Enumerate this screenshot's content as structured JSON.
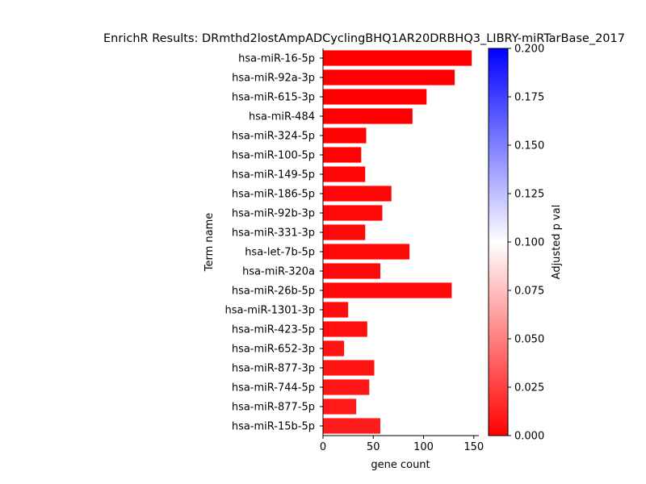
{
  "chart_data": {
    "type": "bar",
    "orientation": "horizontal",
    "title": "EnrichR Results: DRmthd2lostAmpADCyclingBHQ1AR20DRBHQ3_LIBRY-miRTarBase_2017",
    "xlabel": "gene count",
    "ylabel": "Term name",
    "xlim": [
      0,
      155
    ],
    "xticks": [
      "0",
      "50",
      "100",
      "150"
    ],
    "grid": false,
    "categories": [
      "hsa-miR-16-5p",
      "hsa-miR-92a-3p",
      "hsa-miR-615-3p",
      "hsa-miR-484",
      "hsa-miR-324-5p",
      "hsa-miR-100-5p",
      "hsa-miR-149-5p",
      "hsa-miR-186-5p",
      "hsa-miR-92b-3p",
      "hsa-miR-331-3p",
      "hsa-let-7b-5p",
      "hsa-miR-320a",
      "hsa-miR-26b-5p",
      "hsa-miR-1301-3p",
      "hsa-miR-423-5p",
      "hsa-miR-652-3p",
      "hsa-miR-877-3p",
      "hsa-miR-744-5p",
      "hsa-miR-877-5p",
      "hsa-miR-15b-5p"
    ],
    "values": [
      148,
      131,
      103,
      89,
      43,
      38,
      42,
      68,
      59,
      42,
      86,
      57,
      128,
      25,
      44,
      21,
      51,
      46,
      33,
      57
    ],
    "adjusted_p": [
      0.0,
      0.0,
      0.0,
      0.0,
      0.001,
      0.001,
      0.002,
      0.002,
      0.003,
      0.003,
      0.003,
      0.004,
      0.004,
      0.005,
      0.006,
      0.007,
      0.008,
      0.009,
      0.01,
      0.011
    ],
    "colorbar": {
      "label": "Adjusted p val",
      "range": [
        0.0,
        0.2
      ],
      "ticks": [
        "0.000",
        "0.025",
        "0.050",
        "0.075",
        "0.100",
        "0.125",
        "0.150",
        "0.175",
        "0.200"
      ],
      "colors": [
        "#ff0000",
        "#ffffff",
        "#0000ff"
      ]
    }
  }
}
